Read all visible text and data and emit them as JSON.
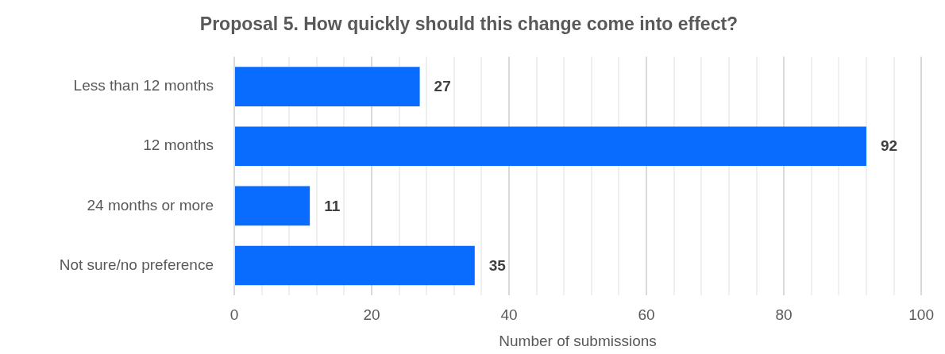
{
  "chart_data": {
    "type": "bar",
    "orientation": "horizontal",
    "title": "Proposal 5. How quickly should this change come into effect?",
    "xlabel": "Number of submissions",
    "categories": [
      "Less than 12 months",
      "12 months",
      "24 months or more",
      "Not sure/no preference"
    ],
    "values": [
      27,
      92,
      11,
      35
    ],
    "color": "#0a6cff",
    "data_labels": true,
    "grid": "x",
    "xlim": [
      0,
      100
    ],
    "xticks": [
      0,
      {
        "value": 4,
        "label": null
      },
      {
        "value": 8,
        "label": null
      },
      {
        "value": 12,
        "label": null
      },
      {
        "value": 16,
        "label": null
      },
      20,
      {
        "value": 24,
        "label": null
      },
      {
        "value": 28,
        "label": null
      },
      {
        "value": 32,
        "label": null
      },
      {
        "value": 36,
        "label": null
      },
      40,
      {
        "value": 44,
        "label": null
      },
      {
        "value": 48,
        "label": null
      },
      {
        "value": 52,
        "label": null
      },
      {
        "value": 56,
        "label": null
      },
      60,
      {
        "value": 64,
        "label": null
      },
      {
        "value": 68,
        "label": null
      },
      {
        "value": 72,
        "label": null
      },
      {
        "value": 76,
        "label": null
      },
      80,
      {
        "value": 84,
        "label": null
      },
      {
        "value": 88,
        "label": null
      },
      {
        "value": 92,
        "label": null
      },
      {
        "value": 96,
        "label": null
      },
      100
    ]
  }
}
